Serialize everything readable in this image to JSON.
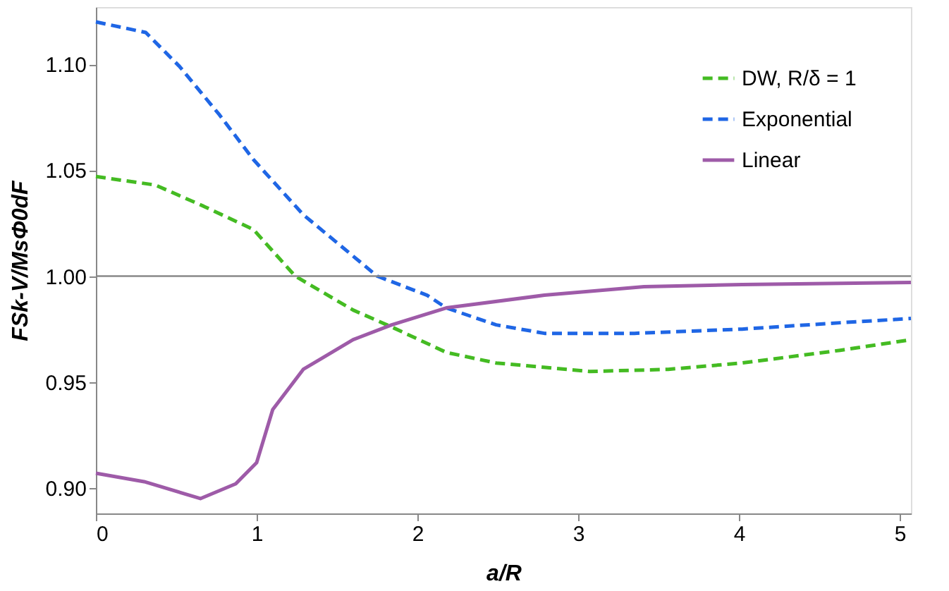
{
  "chart_data": {
    "type": "line",
    "xlabel": "a/R",
    "ylabel": "FSk-V/MsΦ0dF",
    "xlim": [
      0,
      5.07
    ],
    "ylim": [
      0.888,
      1.127
    ],
    "xticks": [
      0,
      1,
      2,
      3,
      4,
      5
    ],
    "yticks": [
      {
        "value": 0.9,
        "label": "0.90"
      },
      {
        "value": 0.95,
        "label": "0.95"
      },
      {
        "value": 1.0,
        "label": "1.00"
      },
      {
        "value": 1.05,
        "label": "1.05"
      },
      {
        "value": 1.1,
        "label": "1.10"
      }
    ],
    "grid": false,
    "legend": "top right",
    "marker": "none",
    "ref_lines": [
      {
        "axis": "y",
        "value": 1.0,
        "color": "#888888"
      }
    ],
    "series": [
      {
        "name": "DW, R/δ = 1",
        "color": "#44bb22",
        "line_style": "dashed",
        "x": [
          0,
          0.37,
          0.67,
          0.98,
          1.24,
          1.6,
          1.84,
          2.18,
          2.49,
          3.07,
          3.56,
          4.02,
          4.63,
          5.07
        ],
        "values": [
          1.047,
          1.043,
          1.033,
          1.022,
          1.0,
          0.984,
          0.976,
          0.964,
          0.959,
          0.955,
          0.956,
          0.959,
          0.965,
          0.97
        ]
      },
      {
        "name": "Exponential",
        "color": "#1f66e5",
        "line_style": "dashed",
        "x": [
          0,
          0.31,
          0.52,
          0.77,
          0.98,
          1.29,
          1.75,
          2.06,
          2.18,
          2.49,
          2.79,
          3.35,
          4.02,
          4.63,
          5.07
        ],
        "values": [
          1.12,
          1.115,
          1.099,
          1.076,
          1.055,
          1.029,
          1.0,
          0.991,
          0.985,
          0.977,
          0.973,
          0.973,
          0.975,
          0.978,
          0.98
        ]
      },
      {
        "name": "Linear",
        "color": "#9e5ba8",
        "line_style": "solid",
        "x": [
          0,
          0.3,
          0.65,
          0.87,
          1.0,
          1.1,
          1.29,
          1.6,
          1.84,
          2.18,
          2.79,
          3.41,
          4.02,
          5.07
        ],
        "values": [
          0.907,
          0.903,
          0.895,
          0.902,
          0.912,
          0.937,
          0.956,
          0.97,
          0.977,
          0.985,
          0.991,
          0.995,
          0.996,
          0.997
        ]
      }
    ]
  }
}
